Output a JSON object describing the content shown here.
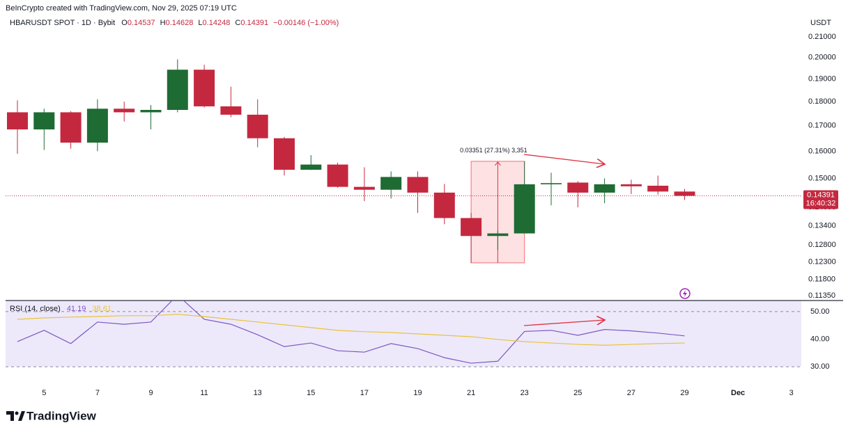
{
  "watermark": "BeInCrypto created with TradingView.com, Nov 29, 2025 07:19 UTC",
  "logo": "TradingView",
  "chart_data": [
    {
      "type": "candlestick",
      "title": "HBARUSDT SPOT · 1D · Bybit",
      "ohlc_letters": [
        "O",
        "H",
        "L",
        "C"
      ],
      "change_label": "−0.00146 (−1.00%)",
      "axis_unit": "USDT",
      "countdown": "16:40:32",
      "measure_label": "0.03351 (27.31%) 3,351",
      "categories": [
        null,
        "5",
        null,
        "7",
        null,
        "9",
        null,
        "11",
        null,
        "13",
        null,
        "15",
        null,
        "17",
        null,
        "19",
        null,
        "21",
        null,
        "23",
        null,
        "25",
        null,
        "27",
        null,
        "29",
        null,
        "Dec",
        null,
        "3"
      ],
      "open": [
        0.1755,
        0.1685,
        0.1755,
        0.1633,
        0.177,
        0.1755,
        0.1765,
        0.1942,
        0.178,
        0.1745,
        0.165,
        0.1531,
        0.155,
        0.147,
        0.146,
        0.1505,
        0.145,
        0.1365,
        0.1308,
        0.1316,
        0.1479,
        0.1485,
        0.145,
        0.1479,
        0.1474,
        0.14537,
        null,
        null,
        null,
        null
      ],
      "high": [
        0.1805,
        0.177,
        0.176,
        0.181,
        0.18,
        0.1785,
        0.199,
        0.1965,
        0.1865,
        0.181,
        0.1655,
        0.1585,
        0.1557,
        0.154,
        0.1525,
        0.1525,
        0.148,
        0.1382,
        0.1325,
        0.15621,
        0.152,
        0.149,
        0.15,
        0.1495,
        0.151,
        0.14628,
        null,
        null,
        null,
        null
      ],
      "low": [
        0.159,
        0.1605,
        0.161,
        0.16,
        0.1717,
        0.1685,
        0.1755,
        0.1775,
        0.1735,
        0.1615,
        0.151,
        0.153,
        0.1467,
        0.1421,
        0.143,
        0.1382,
        0.1345,
        0.1227,
        0.1266,
        0.1316,
        0.1407,
        0.14,
        0.1414,
        0.1445,
        0.1443,
        0.14248,
        null,
        null,
        null,
        null
      ],
      "close": [
        0.1685,
        0.1755,
        0.1633,
        0.177,
        0.1755,
        0.1765,
        0.1942,
        0.178,
        0.1745,
        0.165,
        0.1531,
        0.155,
        0.147,
        0.146,
        0.1505,
        0.145,
        0.1365,
        0.1308,
        0.1316,
        0.1479,
        0.1483,
        0.145,
        0.1479,
        0.1472,
        0.14537,
        0.14391,
        null,
        null,
        null,
        null
      ],
      "up_color": "#1f6b34",
      "down_color": "#c4283f",
      "log_scale": true,
      "ylim": [
        0.1122,
        0.221
      ],
      "yticks": [
        {
          "value": 0.21,
          "label": "0.21000"
        },
        {
          "value": 0.2,
          "label": "0.20000"
        },
        {
          "value": 0.19,
          "label": "0.19000"
        },
        {
          "value": 0.18,
          "label": "0.18000"
        },
        {
          "value": 0.17,
          "label": "0.17000"
        },
        {
          "value": 0.16,
          "label": "0.16000"
        },
        {
          "value": 0.15,
          "label": "0.15000"
        },
        {
          "value": 0.14,
          "label": "0.14000"
        },
        {
          "value": 0.134,
          "label": "0.13400"
        },
        {
          "value": 0.128,
          "label": "0.12800"
        },
        {
          "value": 0.123,
          "label": "0.12300"
        },
        {
          "value": 0.118,
          "label": "0.11800"
        },
        {
          "value": 0.1135,
          "label": "0.11350"
        }
      ]
    },
    {
      "type": "line",
      "title": "RSI (14, close)",
      "series": [
        {
          "color": "#7e57c2",
          "values": [
            39.1,
            43.2,
            38.4,
            46.2,
            45.4,
            46.2,
            56,
            47.2,
            45.4,
            41.6,
            37.3,
            38.6,
            35.8,
            35.3,
            38.4,
            36.6,
            33.3,
            31.3,
            32.0,
            42.8,
            43.2,
            41.4,
            43.5,
            43.0,
            42.2,
            41.19,
            null,
            null,
            null,
            null
          ]
        },
        {
          "color": "#e8c33a",
          "values": [
            47.2,
            47.7,
            48.0,
            48.2,
            48.5,
            48.5,
            49.0,
            48.2,
            47.2,
            46.2,
            45.2,
            44.2,
            43.2,
            42.7,
            42.4,
            41.9,
            41.4,
            40.9,
            39.9,
            39.1,
            38.6,
            38.1,
            37.8,
            38.1,
            38.4,
            38.61,
            null,
            null,
            null,
            null
          ]
        }
      ],
      "ylim": [
        24,
        54
      ],
      "yticks": [
        {
          "value": 50,
          "label": "50.00"
        },
        {
          "value": 40,
          "label": "40.00"
        },
        {
          "value": 30,
          "label": "30.00"
        }
      ],
      "band_lines": [
        50,
        30
      ],
      "band_color": "#ede9fa"
    }
  ]
}
